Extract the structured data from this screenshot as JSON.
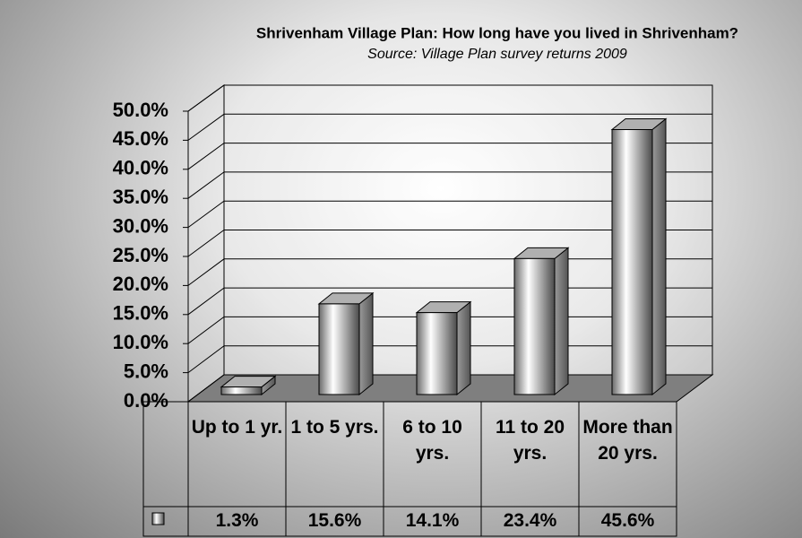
{
  "chart_data": {
    "type": "bar3d",
    "title": "Shrivenham Village Plan:  How long have you lived in Shrivenham?",
    "subtitle": "Source: Village Plan survey returns 2009",
    "categories": [
      "Up to 1 yr.",
      "1 to 5 yrs.",
      "6 to 10 yrs.",
      "11 to 20 yrs.",
      "More than 20 yrs."
    ],
    "values": [
      1.3,
      15.6,
      14.1,
      23.4,
      45.6
    ],
    "value_labels": [
      "1.3%",
      "15.6%",
      "14.1%",
      "23.4%",
      "45.6%"
    ],
    "ylim": [
      0,
      50
    ],
    "yticks": [
      {
        "value": 0,
        "label": "0.0%"
      },
      {
        "value": 5,
        "label": "5.0%"
      },
      {
        "value": 10,
        "label": "10.0%"
      },
      {
        "value": 15,
        "label": "15.0%"
      },
      {
        "value": 20,
        "label": "20.0%"
      },
      {
        "value": 25,
        "label": "25.0%"
      },
      {
        "value": 30,
        "label": "30.0%"
      },
      {
        "value": 35,
        "label": "35.0%"
      },
      {
        "value": 40,
        "label": "40.0%"
      },
      {
        "value": 45,
        "label": "45.0%"
      },
      {
        "value": 50,
        "label": "50.0%"
      }
    ],
    "grid": true
  }
}
